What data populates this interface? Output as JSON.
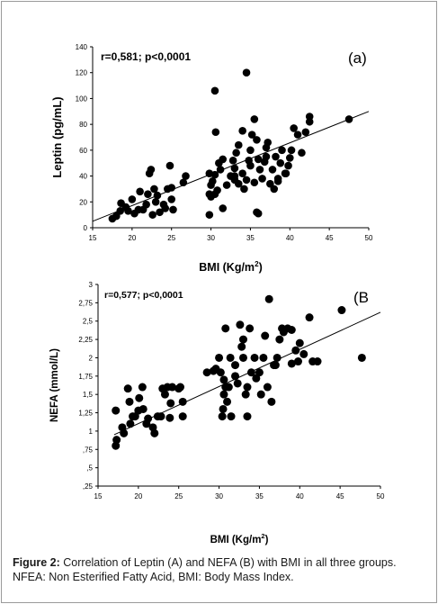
{
  "chart_data": [
    {
      "type": "scatter",
      "panel_label": "(a)",
      "annotation": "r=0,581; p<0,0001",
      "xlabel": "BMI (Kg/m²)",
      "xlabel_main": "BMI (Kg/m",
      "xlabel_sup": "2",
      "xlabel_close": ")",
      "ylabel": "Leptin  (pg/mL)",
      "xlim": [
        15,
        50
      ],
      "ylim": [
        0,
        140
      ],
      "x_ticks": [
        "15",
        "20",
        "25",
        "30",
        "35",
        "40",
        "45",
        "50"
      ],
      "y_ticks": [
        "0",
        "20",
        "40",
        "60",
        "80",
        "100",
        "120",
        "140"
      ],
      "trendline": [
        [
          15,
          5
        ],
        [
          50,
          90
        ]
      ],
      "series": [
        {
          "points": [
            [
              17.5,
              7
            ],
            [
              18,
              9
            ],
            [
              18.5,
              13
            ],
            [
              18.6,
              19
            ],
            [
              19.2,
              16
            ],
            [
              19.5,
              13
            ],
            [
              20,
              22
            ],
            [
              20.3,
              11
            ],
            [
              20.8,
              14
            ],
            [
              21,
              28
            ],
            [
              21.4,
              14
            ],
            [
              21.8,
              18
            ],
            [
              22,
              26
            ],
            [
              22.2,
              42
            ],
            [
              22.4,
              45
            ],
            [
              22.6,
              10
            ],
            [
              22.8,
              30
            ],
            [
              23,
              20
            ],
            [
              23.2,
              25
            ],
            [
              23.5,
              12
            ],
            [
              24,
              18
            ],
            [
              24.2,
              15
            ],
            [
              24.5,
              30
            ],
            [
              24.8,
              48
            ],
            [
              25,
              22
            ],
            [
              25.2,
              14
            ],
            [
              25,
              31
            ],
            [
              26.5,
              35
            ],
            [
              26.8,
              40
            ],
            [
              29.8,
              10
            ],
            [
              30,
              24
            ],
            [
              30,
              33
            ],
            [
              30.2,
              36
            ],
            [
              30.5,
              26
            ],
            [
              30.8,
              29
            ],
            [
              30.5,
              41
            ],
            [
              31,
              50
            ],
            [
              30.6,
              74
            ],
            [
              30.5,
              106
            ],
            [
              31.5,
              53
            ],
            [
              31.5,
              15
            ],
            [
              32.5,
              40
            ],
            [
              33,
              37
            ],
            [
              33,
              46
            ],
            [
              33.2,
              58
            ],
            [
              33.5,
              34
            ],
            [
              34,
              42
            ],
            [
              34.2,
              30
            ],
            [
              34.5,
              37
            ],
            [
              34.8,
              52
            ],
            [
              35,
              60
            ],
            [
              35.2,
              72
            ],
            [
              35.5,
              35
            ],
            [
              35.8,
              12
            ],
            [
              36,
              11
            ],
            [
              36.2,
              45
            ],
            [
              36.5,
              38
            ],
            [
              36.8,
              51
            ],
            [
              37,
              62
            ],
            [
              37.2,
              66
            ],
            [
              37.5,
              34
            ],
            [
              37.8,
              45
            ],
            [
              38,
              30
            ],
            [
              38.2,
              55
            ],
            [
              38.5,
              36
            ],
            [
              38.8,
              50
            ],
            [
              39,
              60
            ],
            [
              39.4,
              42
            ],
            [
              39.8,
              48
            ],
            [
              40,
              54
            ],
            [
              40.2,
              60
            ],
            [
              40.5,
              77
            ],
            [
              41,
              72
            ],
            [
              41.5,
              58
            ],
            [
              42,
              74
            ],
            [
              42.5,
              82
            ],
            [
              42.5,
              86
            ],
            [
              34.5,
              120
            ],
            [
              33.5,
              64
            ],
            [
              34,
              75
            ],
            [
              35.5,
              84
            ],
            [
              35.8,
              68
            ],
            [
              31.2,
              45
            ],
            [
              32,
              33
            ],
            [
              29.8,
              42
            ],
            [
              47.5,
              84
            ],
            [
              38.5,
              38
            ],
            [
              39.5,
              42
            ],
            [
              35,
              48
            ],
            [
              36,
              53
            ],
            [
              37,
              55
            ],
            [
              33,
              40
            ],
            [
              32.8,
              52
            ],
            [
              29.8,
              26
            ]
          ]
        }
      ]
    },
    {
      "type": "scatter",
      "panel_label": "(B",
      "annotation": "r=0,577; p<0,0001",
      "xlabel": "BMI (Kg/m²)",
      "xlabel_main": "BMI (Kg/m",
      "xlabel_sup": "2",
      "xlabel_close": ")",
      "ylabel": "NEFA (mmol/L)",
      "xlim": [
        15,
        50
      ],
      "ylim": [
        0.25,
        3
      ],
      "x_ticks": [
        "15",
        "20",
        "25",
        "30",
        "35",
        "40",
        "45",
        "50"
      ],
      "y_ticks": [
        ",25",
        ",5",
        ",75",
        "1",
        "1,25",
        "1,5",
        "1,75",
        "2",
        "2,25",
        "2,5",
        "2,75",
        "3"
      ],
      "trendline": [
        [
          17,
          0.95
        ],
        [
          50,
          2.62
        ]
      ],
      "series": [
        {
          "points": [
            [
              17.2,
              0.8
            ],
            [
              17.3,
              0.88
            ],
            [
              17.2,
              1.28
            ],
            [
              18,
              1.05
            ],
            [
              18.2,
              0.97
            ],
            [
              18.7,
              1.58
            ],
            [
              18.9,
              1.4
            ],
            [
              19,
              1.1
            ],
            [
              19.3,
              1.2
            ],
            [
              19.6,
              1.2
            ],
            [
              20,
              1.28
            ],
            [
              20.1,
              1.45
            ],
            [
              20.5,
              1.6
            ],
            [
              20.6,
              1.3
            ],
            [
              21,
              1.1
            ],
            [
              21.2,
              1.17
            ],
            [
              21.8,
              1.05
            ],
            [
              22,
              0.97
            ],
            [
              22.4,
              1.2
            ],
            [
              22.8,
              1.2
            ],
            [
              23,
              1.58
            ],
            [
              23.3,
              1.5
            ],
            [
              23.6,
              1.6
            ],
            [
              23.9,
              1.18
            ],
            [
              24,
              1.38
            ],
            [
              24.2,
              1.6
            ],
            [
              25,
              1.58
            ],
            [
              25.2,
              1.6
            ],
            [
              25.5,
              1.2
            ],
            [
              25.5,
              1.4
            ],
            [
              28.5,
              1.8
            ],
            [
              29.3,
              1.82
            ],
            [
              29.6,
              1.85
            ],
            [
              30,
              2.0
            ],
            [
              30.2,
              1.8
            ],
            [
              30.4,
              1.2
            ],
            [
              30.5,
              1.3
            ],
            [
              30.6,
              1.5
            ],
            [
              30.8,
              1.6
            ],
            [
              30.8,
              2.4
            ],
            [
              31,
              1.4
            ],
            [
              31.2,
              1.6
            ],
            [
              31.4,
              2.0
            ],
            [
              31.5,
              1.2
            ],
            [
              32,
              1.9
            ],
            [
              32.3,
              1.65
            ],
            [
              32.6,
              2.45
            ],
            [
              32.8,
              2.15
            ],
            [
              33.0,
              2.0
            ],
            [
              33.0,
              2.25
            ],
            [
              33.3,
              1.5
            ],
            [
              33.5,
              1.6
            ],
            [
              33.8,
              2.4
            ],
            [
              34,
              1.8
            ],
            [
              34.4,
              2.0
            ],
            [
              34.6,
              1.72
            ],
            [
              35,
              1.8
            ],
            [
              35.2,
              1.5
            ],
            [
              35.5,
              2.0
            ],
            [
              35.7,
              2.3
            ],
            [
              36,
              1.6
            ],
            [
              36.2,
              2.8
            ],
            [
              36.5,
              1.4
            ],
            [
              36.8,
              1.9
            ],
            [
              37.2,
              2.0
            ],
            [
              37.5,
              2.25
            ],
            [
              37.8,
              2.4
            ],
            [
              38,
              2.35
            ],
            [
              38.5,
              2.4
            ],
            [
              39,
              2.38
            ],
            [
              39.5,
              2.1
            ],
            [
              39.8,
              1.95
            ],
            [
              40,
              2.2
            ],
            [
              40.5,
              2.05
            ],
            [
              41.2,
              2.55
            ],
            [
              41.6,
              1.95
            ],
            [
              42.2,
              1.95
            ],
            [
              45.2,
              2.65
            ],
            [
              47.7,
              2.0
            ],
            [
              37,
              1.9
            ],
            [
              33.5,
              1.2
            ],
            [
              30.6,
              1.7
            ],
            [
              32,
              1.75
            ],
            [
              39,
              1.92
            ]
          ]
        }
      ]
    }
  ],
  "caption": {
    "label": "Figure 2:",
    "text": " Correlation of Leptin (A) and NEFA (B) with BMI in all three groups. NFEA: Non Esterified Fatty Acid, BMI: Body Mass Index."
  }
}
